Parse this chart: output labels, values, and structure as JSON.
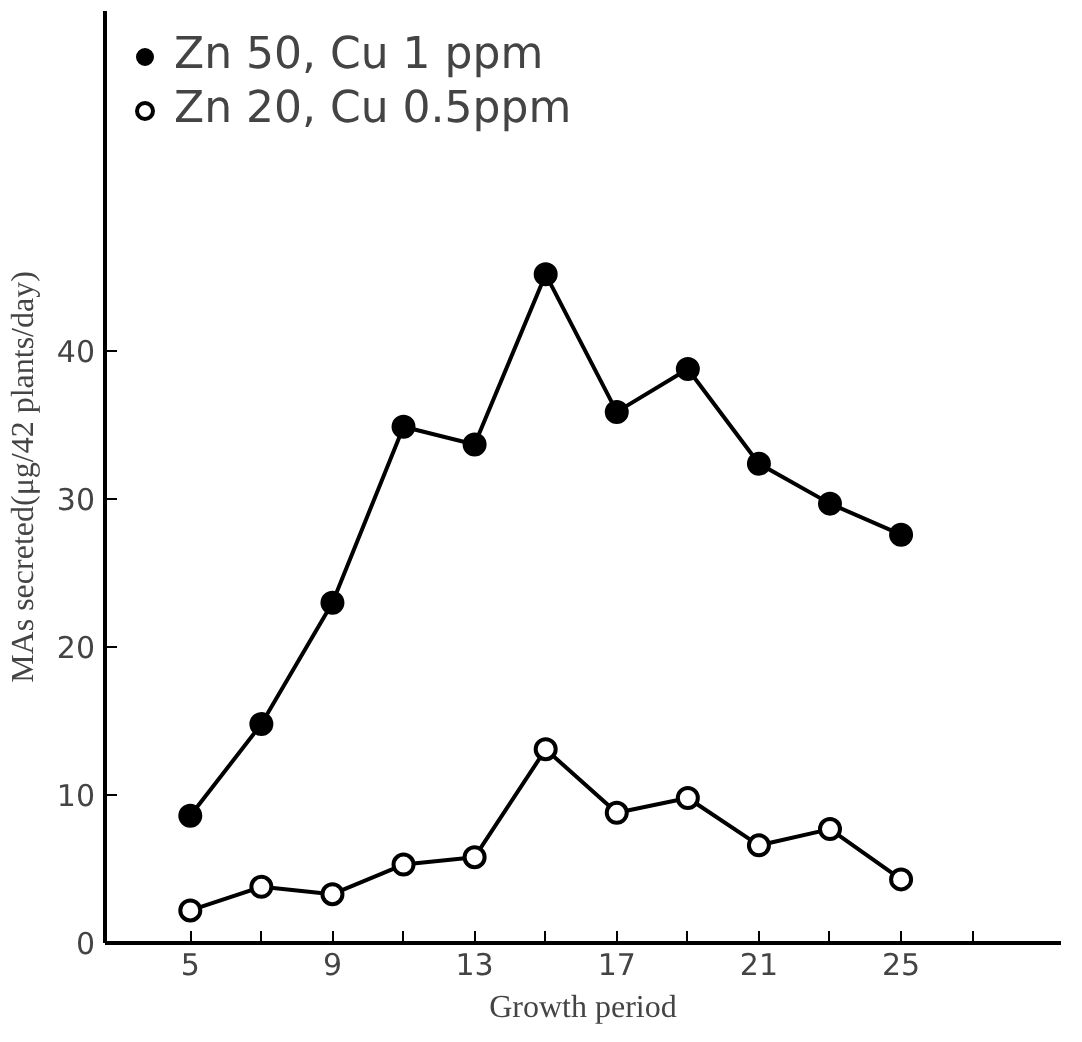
{
  "chart_data": {
    "type": "line",
    "xlabel": "Growth period",
    "ylabel": "MAs secreted(μg/42 plants/day)",
    "x": [
      5,
      7,
      9,
      11,
      13,
      15,
      17,
      19,
      21,
      23,
      25
    ],
    "series": [
      {
        "name": "Zn 50, Cu 1 ppm",
        "color": "#000000",
        "marker": "circle",
        "values": [
          8.6,
          14.8,
          23.0,
          34.9,
          33.7,
          45.2,
          35.9,
          38.8,
          32.4,
          29.7,
          27.6
        ]
      },
      {
        "name": "Zn 20, Cu 0.5ppm",
        "color": "#000000",
        "marker": "open_circle",
        "values": [
          2.2,
          3.8,
          3.3,
          5.3,
          5.8,
          13.1,
          8.8,
          9.8,
          6.6,
          7.7,
          4.3
        ]
      }
    ],
    "xlim": [
      2.6,
      29.5
    ],
    "ylim": [
      0,
      63
    ],
    "xticks": [
      5,
      {
        "value": 7,
        "label": null
      },
      9,
      {
        "value": 11,
        "label": null
      },
      13,
      {
        "value": 15,
        "label": null
      },
      17,
      {
        "value": 19,
        "label": null
      },
      21,
      {
        "value": 23,
        "label": null
      },
      25,
      {
        "value": 27,
        "label": null
      }
    ],
    "yticks": [
      0,
      10,
      20,
      30,
      40
    ],
    "grid": false,
    "legend": "top left",
    "line_style": "solid"
  }
}
